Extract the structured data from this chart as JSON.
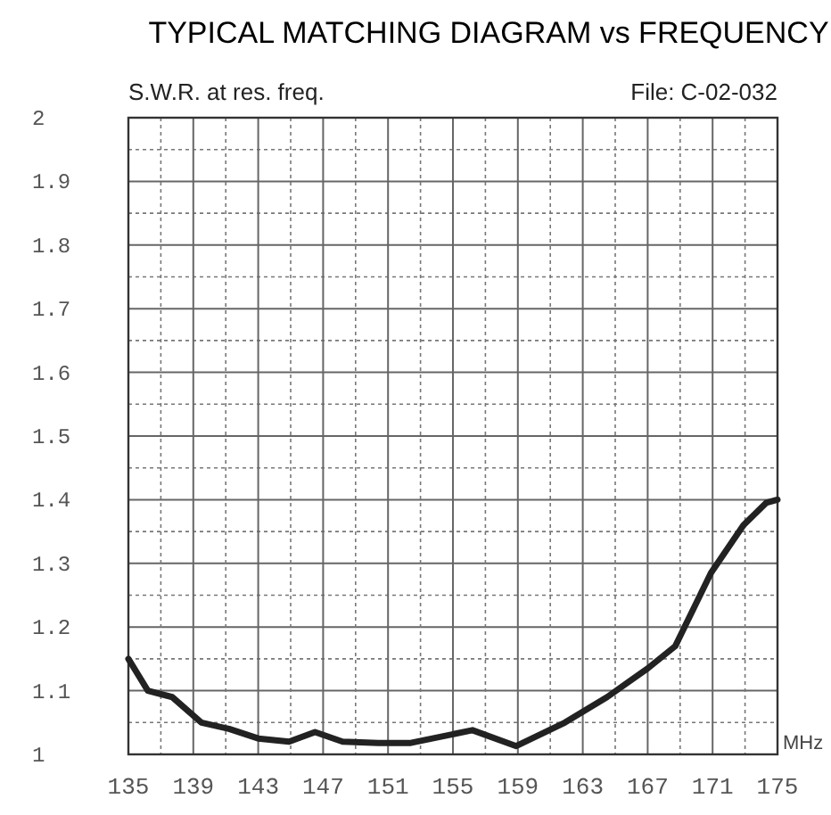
{
  "chart_data": {
    "type": "line",
    "title": "TYPICAL MATCHING DIAGRAM vs FREQUENCY",
    "ylabel": "S.W.R. at res. freq.",
    "xlabel": "MHz",
    "annotations": [
      "File: C-02-032"
    ],
    "x": [
      135,
      136.2,
      137.7,
      139.5,
      141.2,
      143,
      144.9,
      146.5,
      148.2,
      150.4,
      152.4,
      156.2,
      158.9,
      161.9,
      164.5,
      167,
      168.7,
      170.9,
      172.9,
      174.3,
      175
    ],
    "series": [
      {
        "color": "#222222",
        "values": [
          1.15,
          1.1,
          1.09,
          1.05,
          1.04,
          1.025,
          1.02,
          1.035,
          1.02,
          1.018,
          1.018,
          1.038,
          1.013,
          1.05,
          1.09,
          1.135,
          1.17,
          1.285,
          1.36,
          1.395,
          1.4
        ]
      }
    ],
    "xlim": [
      135,
      175
    ],
    "xticks": [
      135,
      139,
      143,
      147,
      151,
      155,
      159,
      163,
      167,
      171,
      175
    ],
    "ylim": [
      1,
      2
    ],
    "yticks": [
      1,
      1.1,
      1.2,
      1.3,
      1.4,
      1.5,
      1.6,
      1.7,
      1.8,
      1.9,
      2
    ],
    "grid": true,
    "marker": "none",
    "line_style": "solid"
  }
}
